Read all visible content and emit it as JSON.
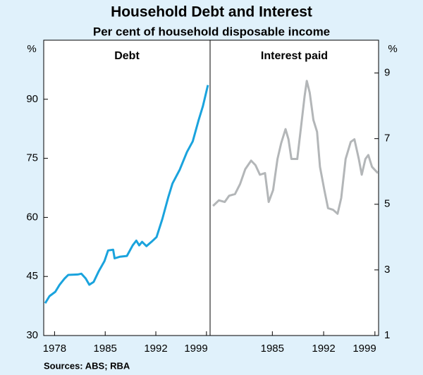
{
  "title": "Household Debt and Interest",
  "subtitle": "Per cent of household disposable income",
  "source": "Sources:  ABS; RBA",
  "chart_data": [
    {
      "type": "line",
      "title": "Debt",
      "ylabel": "%",
      "axis_side": "left",
      "color": "#1aa3dd",
      "xlim": [
        1976.5,
        1999.5
      ],
      "xticks": [
        1978,
        1985,
        1992,
        1999
      ],
      "ylim": [
        30,
        105
      ],
      "yticks": [
        30,
        45,
        60,
        75,
        90
      ],
      "x": [
        1976.7,
        1977.3,
        1978.1,
        1978.7,
        1979.4,
        1979.9,
        1981.2,
        1981.7,
        1982.3,
        1982.8,
        1983.4,
        1984.1,
        1984.9,
        1985.4,
        1986.1,
        1986.3,
        1987.0,
        1988.0,
        1988.8,
        1989.3,
        1989.7,
        1990.1,
        1990.7,
        1991.4,
        1992.1,
        1992.9,
        1993.7,
        1994.3,
        1995.3,
        1996.3,
        1997.1,
        1997.9,
        1998.5,
        1999.2
      ],
      "values": [
        38.2,
        40,
        41.1,
        42.9,
        44.5,
        45.4,
        45.5,
        45.7,
        44.5,
        42.9,
        43.6,
        46.3,
        48.9,
        51.6,
        51.8,
        49.6,
        50,
        50.2,
        52.9,
        54.1,
        52.9,
        53.8,
        52.7,
        53.8,
        55,
        59.6,
        65,
        68.6,
        72.1,
        76.6,
        79.3,
        84.6,
        88.2,
        93.6
      ]
    },
    {
      "type": "line",
      "title": "Interest paid",
      "ylabel": "%",
      "axis_side": "right",
      "color": "#b3b6b8",
      "xlim": [
        1976.5,
        1999.5
      ],
      "xticks": [
        1985,
        1992,
        1999
      ],
      "ylim": [
        1,
        10
      ],
      "yticks": [
        1,
        3,
        5,
        7,
        9
      ],
      "x": [
        1976.9,
        1977.7,
        1978.5,
        1979.1,
        1979.9,
        1980.6,
        1981.3,
        1982.1,
        1982.7,
        1983.3,
        1984.0,
        1984.5,
        1985.1,
        1985.7,
        1986.2,
        1986.8,
        1987.2,
        1987.6,
        1988.4,
        1988.9,
        1989.4,
        1989.7,
        1990.1,
        1990.6,
        1991.1,
        1991.5,
        1992.1,
        1992.6,
        1993.3,
        1993.9,
        1994.4,
        1995.0,
        1995.7,
        1996.2,
        1996.8,
        1997.2,
        1997.7,
        1998.1,
        1998.6,
        1999.4
      ],
      "values": [
        4.95,
        5.12,
        5.07,
        5.26,
        5.31,
        5.62,
        6.07,
        6.33,
        6.19,
        5.9,
        5.95,
        5.07,
        5.43,
        6.38,
        6.86,
        7.29,
        6.98,
        6.38,
        6.38,
        7.33,
        8.29,
        8.76,
        8.4,
        7.57,
        7.21,
        6.14,
        5.43,
        4.88,
        4.83,
        4.71,
        5.19,
        6.38,
        6.9,
        6.98,
        6.38,
        5.9,
        6.38,
        6.5,
        6.14,
        5.95
      ]
    }
  ]
}
